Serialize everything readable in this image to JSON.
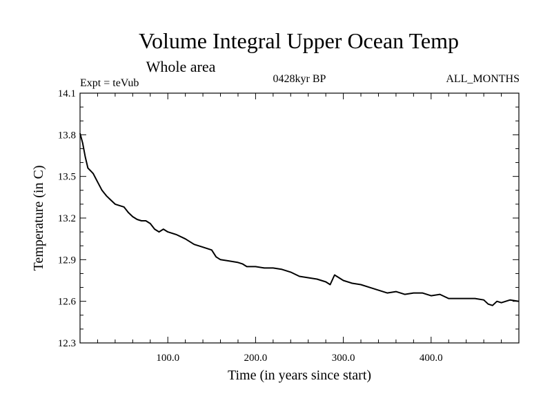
{
  "chart_data": {
    "type": "line",
    "title": "Volume Integral Upper Ocean Temp",
    "subtitle": "Whole area",
    "annotations": {
      "left": "Expt = teVub",
      "center": "0428kyr BP",
      "right": "ALL_MONTHS"
    },
    "xlabel": "Time (in years since start)",
    "ylabel": "Temperature (in C)",
    "xlim": [
      0,
      500
    ],
    "ylim": [
      12.3,
      14.1
    ],
    "xticks": [
      100,
      200,
      300,
      400
    ],
    "xtick_labels": [
      "100.0",
      "200.0",
      "300.0",
      "400.0"
    ],
    "yticks": [
      12.3,
      12.6,
      12.9,
      13.2,
      13.5,
      13.8,
      14.1
    ],
    "ytick_labels": [
      "12.3",
      "12.6",
      "12.9",
      "13.2",
      "13.5",
      "13.8",
      "14.1"
    ],
    "grid": false,
    "line_color": "#000000",
    "series": [
      {
        "x": [
          0,
          3,
          6,
          9,
          12,
          15,
          20,
          25,
          30,
          35,
          40,
          45,
          50,
          55,
          60,
          65,
          70,
          75,
          80,
          85,
          90,
          95,
          100,
          110,
          120,
          130,
          140,
          150,
          155,
          160,
          170,
          180,
          185,
          190,
          200,
          210,
          220,
          230,
          240,
          250,
          260,
          270,
          280,
          285,
          290,
          300,
          310,
          320,
          330,
          340,
          350,
          360,
          370,
          380,
          390,
          400,
          410,
          420,
          430,
          440,
          450,
          460,
          465,
          470,
          475,
          480,
          490,
          500
        ],
        "values": [
          13.81,
          13.74,
          13.64,
          13.56,
          13.54,
          13.52,
          13.46,
          13.4,
          13.36,
          13.33,
          13.3,
          13.29,
          13.28,
          13.24,
          13.21,
          13.19,
          13.18,
          13.18,
          13.16,
          13.12,
          13.1,
          13.12,
          13.1,
          13.08,
          13.05,
          13.01,
          12.99,
          12.97,
          12.92,
          12.9,
          12.89,
          12.88,
          12.87,
          12.85,
          12.85,
          12.84,
          12.84,
          12.83,
          12.81,
          12.78,
          12.77,
          12.76,
          12.74,
          12.72,
          12.79,
          12.75,
          12.73,
          12.72,
          12.7,
          12.68,
          12.66,
          12.67,
          12.65,
          12.66,
          12.66,
          12.64,
          12.65,
          12.62,
          12.62,
          12.62,
          12.62,
          12.61,
          12.58,
          12.57,
          12.6,
          12.59,
          12.61,
          12.6
        ]
      }
    ]
  }
}
